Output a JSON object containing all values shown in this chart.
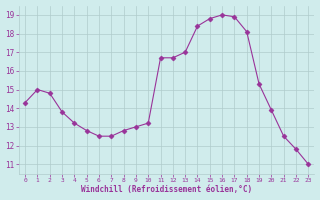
{
  "x": [
    0,
    1,
    2,
    3,
    4,
    5,
    6,
    7,
    8,
    9,
    10,
    11,
    12,
    13,
    14,
    15,
    16,
    17,
    18,
    19,
    20,
    21,
    22,
    23
  ],
  "y": [
    14.3,
    15.0,
    14.8,
    13.8,
    13.2,
    12.8,
    12.5,
    12.5,
    12.8,
    13.0,
    13.2,
    16.7,
    16.7,
    17.0,
    18.4,
    18.8,
    19.0,
    18.9,
    18.1,
    15.3,
    13.9,
    12.5,
    11.8,
    11.0
  ],
  "line_color": "#993399",
  "marker": "D",
  "marker_size": 2.5,
  "bg_color": "#d0ecec",
  "grid_color": "#b0cccc",
  "ylabel_ticks": [
    11,
    12,
    13,
    14,
    15,
    16,
    17,
    18,
    19
  ],
  "xlabel": "Windchill (Refroidissement éolien,°C)",
  "xlim": [
    -0.5,
    23.5
  ],
  "ylim": [
    10.5,
    19.5
  ],
  "tick_color": "#993399",
  "label_color": "#993399",
  "figwidth": 3.2,
  "figheight": 2.0,
  "dpi": 100
}
